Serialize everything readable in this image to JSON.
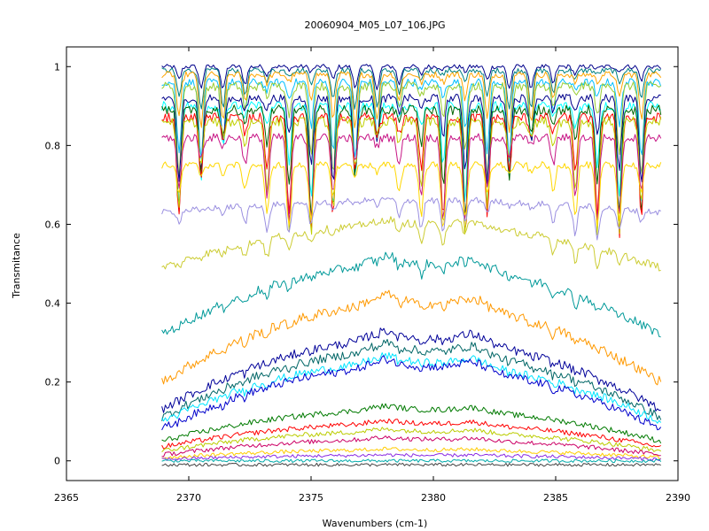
{
  "chart_data": {
    "type": "line",
    "title": "20060904_M05_L07_106.JPG",
    "xlabel": "Wavenumbers (cm-1)",
    "ylabel": "Transmitance",
    "xlim": [
      2365,
      2390
    ],
    "ylim": [
      -0.05,
      1.05
    ],
    "x_ticks": [
      2365,
      2370,
      2375,
      2380,
      2385,
      2390
    ],
    "x_tick_labels": [
      "2365",
      "2370",
      "2375",
      "2380",
      "2385",
      "2390"
    ],
    "y_ticks": [
      0,
      0.2,
      0.4,
      0.6,
      0.8,
      1
    ],
    "y_tick_labels": [
      "0",
      "0.2",
      "0.4",
      "0.6",
      "0.8",
      "1"
    ],
    "x_range_data": [
      2368.9,
      2389.3
    ],
    "grid": false,
    "legend": "none",
    "absorption_lines_cm1": [
      2369.6,
      2370.5,
      2371.4,
      2372.3,
      2373.2,
      2374.1,
      2375.0,
      2375.9,
      2376.8,
      2377.7,
      2378.6,
      2379.5,
      2380.4,
      2381.3,
      2382.2,
      2383.1,
      2384.0,
      2384.9,
      2385.8,
      2386.7,
      2387.6,
      2388.5
    ],
    "series": [
      {
        "color": "#00008b",
        "baseline": 1.0,
        "dip_depth": 0.06,
        "hump": 0.0
      },
      {
        "color": "#008080",
        "baseline": 0.99,
        "dip_depth": 0.1,
        "hump": 0.0
      },
      {
        "color": "#ffa500",
        "baseline": 0.98,
        "dip_depth": 0.14,
        "hump": 0.0
      },
      {
        "color": "#00bfff",
        "baseline": 0.96,
        "dip_depth": 0.2,
        "hump": 0.0
      },
      {
        "color": "#9acd32",
        "baseline": 0.95,
        "dip_depth": 0.24,
        "hump": 0.0
      },
      {
        "color": "#00008b",
        "baseline": 0.92,
        "dip_depth": 0.22,
        "hump": 0.0
      },
      {
        "color": "#00ffff",
        "baseline": 0.9,
        "dip_depth": 0.26,
        "hump": 0.0
      },
      {
        "color": "#006400",
        "baseline": 0.89,
        "dip_depth": 0.28,
        "hump": 0.0
      },
      {
        "color": "#ff0000",
        "baseline": 0.87,
        "dip_depth": 0.3,
        "hump": 0.0
      },
      {
        "color": "#c0d000",
        "baseline": 0.86,
        "dip_depth": 0.3,
        "hump": 0.0
      },
      {
        "color": "#c71585",
        "baseline": 0.82,
        "dip_depth": 0.22,
        "hump": 0.0
      },
      {
        "color": "#ffd700",
        "baseline": 0.75,
        "dip_depth": 0.16,
        "hump": 0.0
      },
      {
        "color": "#9a8fe0",
        "baseline": 0.63,
        "dip_depth": 0.08,
        "hump": 0.03
      },
      {
        "color": "#cccc33",
        "baseline": 0.49,
        "dip_depth": 0.05,
        "hump": 0.11
      },
      {
        "color": "#009999",
        "baseline": 0.32,
        "dip_depth": 0.03,
        "hump": 0.18
      },
      {
        "color": "#ff9900",
        "baseline": 0.2,
        "dip_depth": 0.02,
        "hump": 0.2
      },
      {
        "color": "#000099",
        "baseline": 0.13,
        "dip_depth": 0.01,
        "hump": 0.18
      },
      {
        "color": "#006666",
        "baseline": 0.11,
        "dip_depth": 0.01,
        "hump": 0.17
      },
      {
        "color": "#00e5ff",
        "baseline": 0.1,
        "dip_depth": 0.01,
        "hump": 0.15
      },
      {
        "color": "#0000cc",
        "baseline": 0.08,
        "dip_depth": 0.01,
        "hump": 0.16
      },
      {
        "color": "#007a00",
        "baseline": 0.05,
        "dip_depth": 0.0,
        "hump": 0.08
      },
      {
        "color": "#ff0000",
        "baseline": 0.035,
        "dip_depth": 0.0,
        "hump": 0.06
      },
      {
        "color": "#bbcc00",
        "baseline": 0.025,
        "dip_depth": 0.0,
        "hump": 0.05
      },
      {
        "color": "#cc0066",
        "baseline": 0.015,
        "dip_depth": 0.0,
        "hump": 0.04
      },
      {
        "color": "#ffcc00",
        "baseline": 0.008,
        "dip_depth": 0.0,
        "hump": 0.02
      },
      {
        "color": "#8a2be2",
        "baseline": 0.004,
        "dip_depth": 0.0,
        "hump": 0.01
      },
      {
        "color": "#00aaaa",
        "baseline": 0.0,
        "dip_depth": 0.0,
        "hump": 0.0
      },
      {
        "color": "#444444",
        "baseline": -0.01,
        "dip_depth": 0.0,
        "hump": 0.0
      }
    ]
  }
}
